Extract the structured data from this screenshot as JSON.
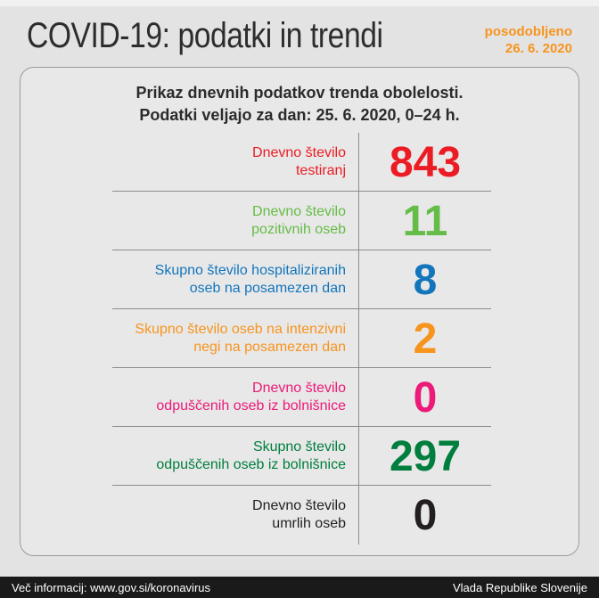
{
  "page": {
    "title": "COVID-19: podatki in trendi",
    "updated_label": "posodobljeno",
    "updated_date": "26. 6. 2020"
  },
  "colors": {
    "accent_orange": "#f7941d",
    "title_dark": "#2d2d2d",
    "divider_gray": "#8c8c8c",
    "footer_black": "#1a1a1a"
  },
  "card": {
    "header_line1": "Prikaz dnevnih podatkov trenda obolelosti.",
    "header_line2": "Podatki veljajo za dan: 25. 6. 2020, 0–24 h.",
    "rows": [
      {
        "label_line1": "Dnevno število",
        "label_line2": "testiranj",
        "value": "843",
        "color": "#ec1c24"
      },
      {
        "label_line1": "Dnevno število",
        "label_line2": "pozitivnih oseb",
        "value": "11",
        "color": "#65bc46"
      },
      {
        "label_line1": "Skupno število hospitaliziranih",
        "label_line2": "oseb na posamezen dan",
        "value": "8",
        "color": "#1375bc"
      },
      {
        "label_line1": "Skupno število oseb na intenzivni",
        "label_line2": "negi na posamezen dan",
        "value": "2",
        "color": "#f7941d"
      },
      {
        "label_line1": "Dnevno število",
        "label_line2": "odpuščenih oseb iz bolnišnice",
        "value": "0",
        "color": "#ec1a78"
      },
      {
        "label_line1": "Skupno število",
        "label_line2": "odpuščenih oseb iz bolnišnice",
        "value": "297",
        "color": "#007e3d"
      },
      {
        "label_line1": "Dnevno število",
        "label_line2": "umrlih oseb",
        "value": "0",
        "color": "#231f20"
      }
    ]
  },
  "footer": {
    "left_text": "Več informacij: www.gov.si/koronavirus",
    "right_text": "Vlada Republike Slovenije"
  },
  "chart_data": {
    "type": "table",
    "title": "COVID-19: podatki in trendi",
    "subtitle": "Prikaz dnevnih podatkov trenda obolelosti. Podatki veljajo za dan: 25. 6. 2020, 0–24 h.",
    "updated": "26. 6. 2020",
    "categories": [
      "Dnevno število testiranj",
      "Dnevno število pozitivnih oseb",
      "Skupno število hospitaliziranih oseb na posamezen dan",
      "Skupno število oseb na intenzivni negi na posamezen dan",
      "Dnevno število odpuščenih oseb iz bolnišnice",
      "Skupno število odpuščenih oseb iz bolnišnice",
      "Dnevno število umrlih oseb"
    ],
    "values": [
      843,
      11,
      8,
      2,
      0,
      297,
      0
    ]
  }
}
